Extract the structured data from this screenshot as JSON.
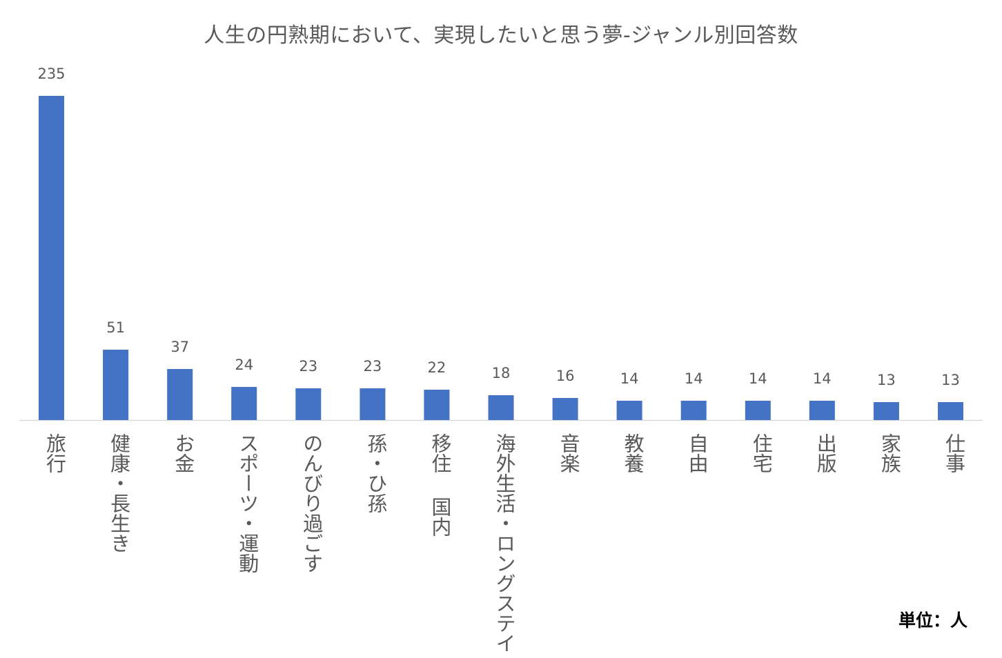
{
  "chart_data": {
    "type": "bar",
    "title": "人生の円熟期において、実現したいと思う夢-ジャンル別回答数",
    "xlabel": "",
    "ylabel": "",
    "ylim": [
      0,
      250
    ],
    "grid": false,
    "legend": "none",
    "categories": [
      "旅行",
      "健康・長生き",
      "お金",
      "スポーツ・運動",
      "のんびり過ごす",
      "孫・ひ孫",
      "移住 国内",
      "海外生活・ロングステイ",
      "音楽",
      "教養",
      "自由",
      "住宅",
      "出版",
      "家族",
      "仕事"
    ],
    "values": [
      235,
      51,
      37,
      24,
      23,
      23,
      22,
      18,
      16,
      14,
      14,
      14,
      14,
      13,
      13
    ],
    "data_labels": [
      "235",
      "51",
      "37",
      "24",
      "23",
      "23",
      "22",
      "18",
      "16",
      "14",
      "14",
      "14",
      "14",
      "13",
      "13"
    ],
    "bar_color": "#4472c4",
    "axis_color": "#d9d9d9",
    "label_color": "#595959"
  },
  "unit": "単位：人"
}
